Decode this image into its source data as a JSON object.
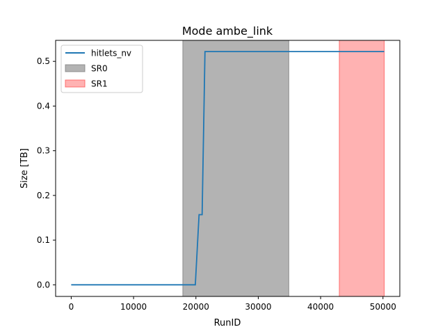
{
  "chart_data": {
    "type": "line",
    "title": "Mode ambe_link",
    "xlabel": "RunID",
    "ylabel": "Size [TB]",
    "xlim": [
      -2500,
      52700
    ],
    "ylim": [
      -0.026,
      0.547
    ],
    "xticks": [
      0,
      10000,
      20000,
      30000,
      40000,
      50000
    ],
    "yticks": [
      0.0,
      0.1,
      0.2,
      0.3,
      0.4,
      0.5
    ],
    "grid": false,
    "legend_position": "upper-left",
    "series": [
      {
        "name": "hitlets_nv",
        "color": "#1f77b4",
        "x": [
          0,
          19900,
          20500,
          20550,
          21000,
          21450,
          50200
        ],
        "y": [
          0.0,
          0.0,
          0.157,
          0.157,
          0.157,
          0.522,
          0.522
        ]
      }
    ],
    "spans": [
      {
        "name": "SR0",
        "x0": 17900,
        "x1": 34900,
        "color": "#808080",
        "alpha": 0.6
      },
      {
        "name": "SR1",
        "x0": 43000,
        "x1": 50200,
        "color": "#ff5555",
        "alpha": 0.45
      }
    ]
  }
}
